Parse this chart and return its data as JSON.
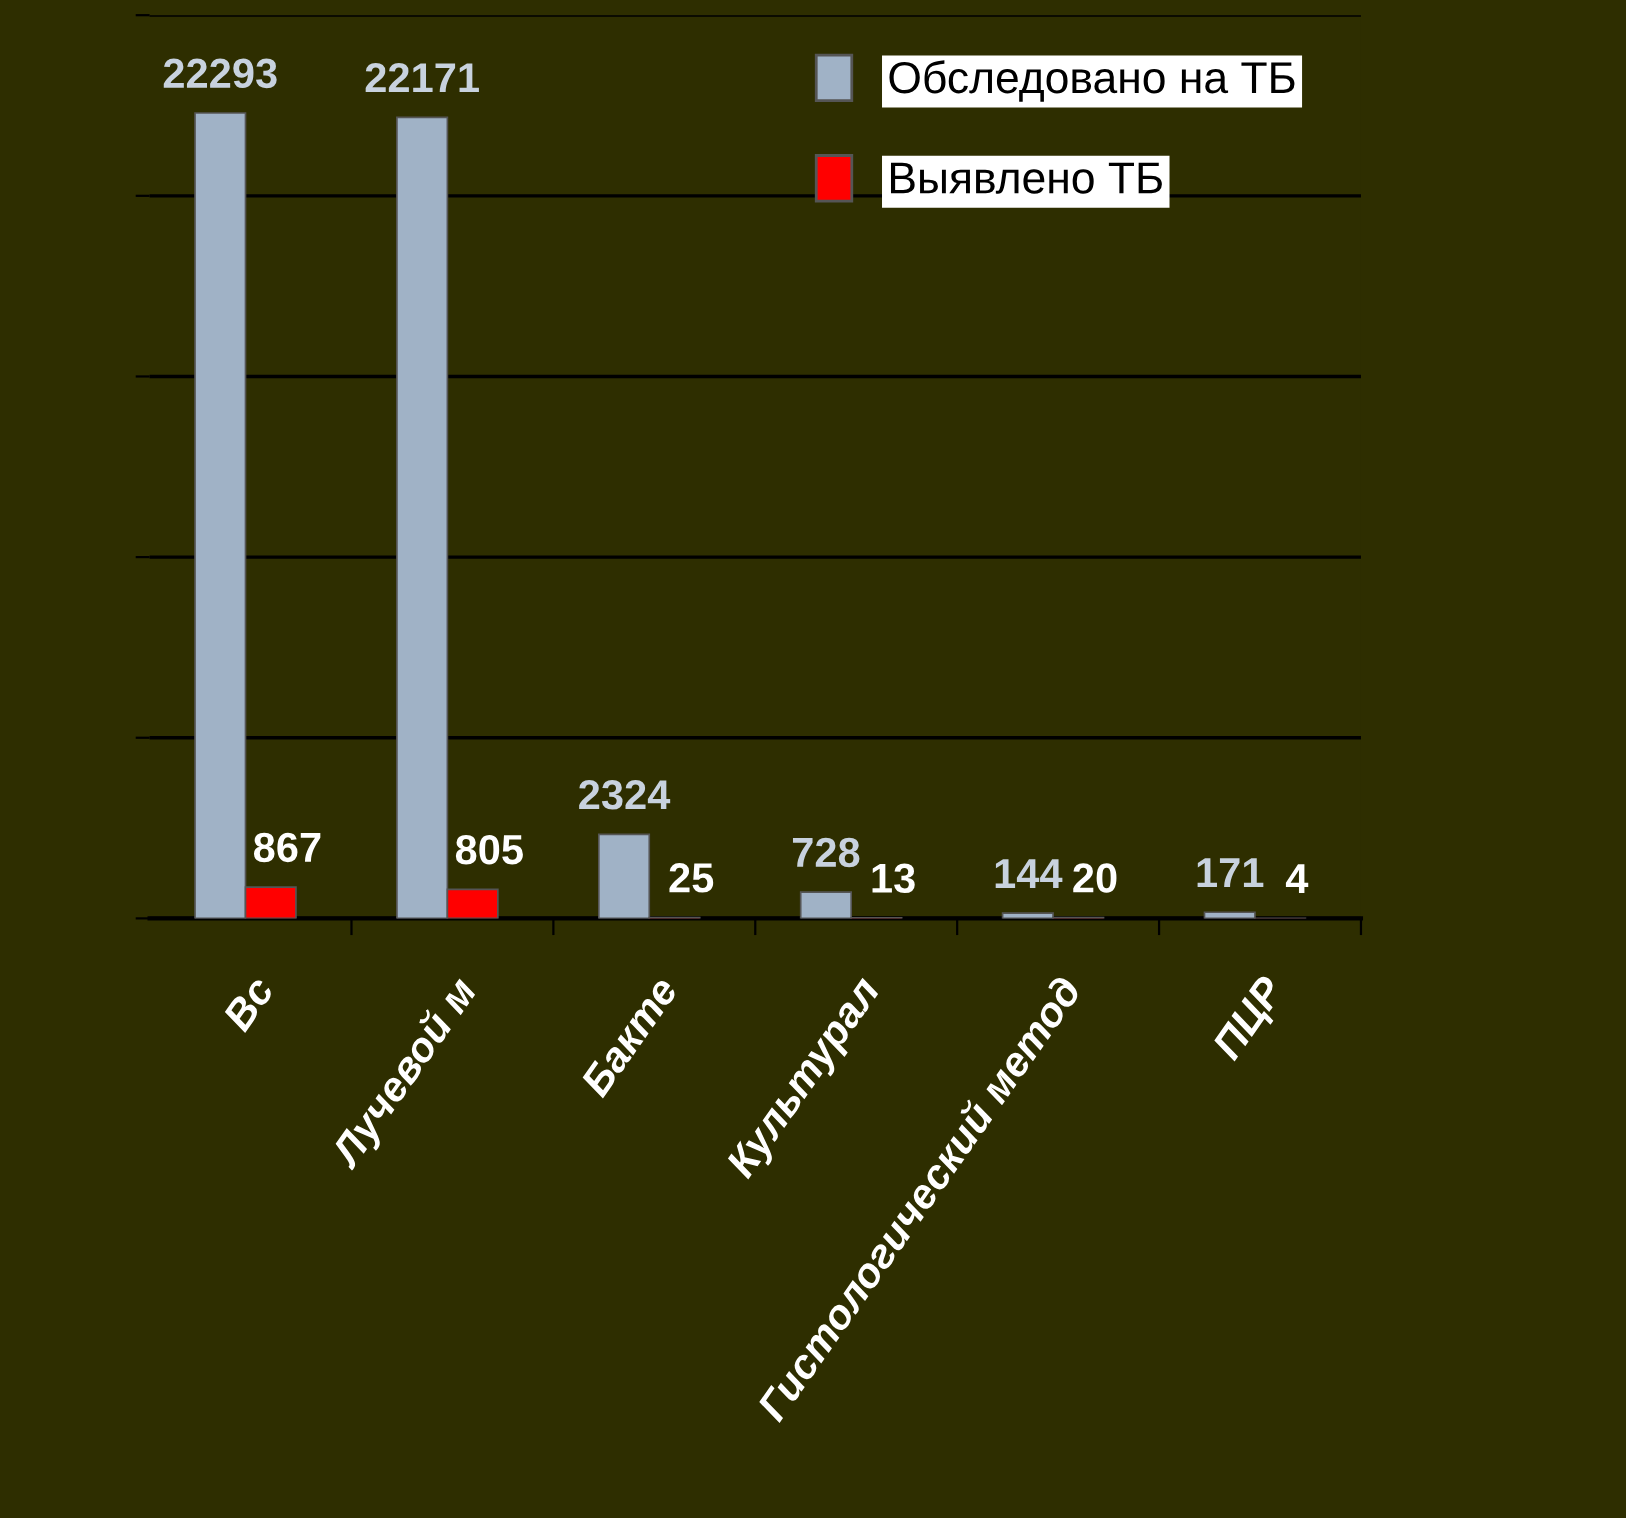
{
  "chart_data": {
    "type": "bar",
    "categories": [
      "Вс",
      "Лучевой м",
      "Бакте",
      "Культурал",
      "Гистологический метод",
      "ПЦР"
    ],
    "series": [
      {
        "name": "Обследовано на ТБ",
        "color": "#a0b2c6",
        "values": [
          22293,
          22171,
          2324,
          728,
          144,
          171
        ]
      },
      {
        "name": "Выявлено ТБ",
        "color": "#ff0000",
        "values": [
          867,
          805,
          25,
          13,
          20,
          4
        ]
      }
    ],
    "ylim": [
      0,
      25000
    ],
    "yticks": [
      {
        "value": 0,
        "label": null
      },
      {
        "value": 5000,
        "label": null
      },
      {
        "value": 10000,
        "label": null
      },
      {
        "value": 15000,
        "label": null
      },
      {
        "value": 20000,
        "label": null
      },
      {
        "value": 25000,
        "label": null
      }
    ],
    "tick_labels": "x",
    "grid": "y",
    "legend": "top right",
    "data_labels": true
  }
}
